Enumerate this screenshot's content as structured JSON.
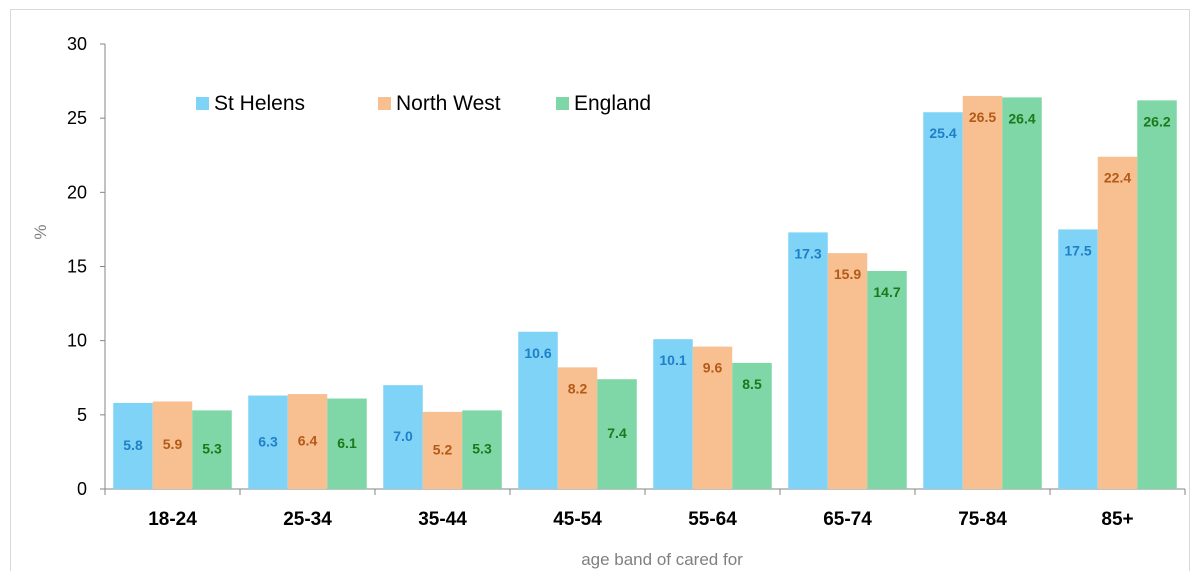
{
  "chart_data": {
    "type": "bar",
    "title": "",
    "xlabel": "age band of cared for",
    "ylabel": "%",
    "ylim": [
      0,
      30
    ],
    "yticks": [
      0,
      5,
      10,
      15,
      20,
      25,
      30
    ],
    "grid": false,
    "legend_position": "top-left",
    "categories": [
      "18-24",
      "25-34",
      "35-44",
      "45-54",
      "55-64",
      "65-74",
      "75-84",
      "85+"
    ],
    "series": [
      {
        "name": "St Helens",
        "color": "#7fd3f6",
        "label_color": "#1f7fc8",
        "values": [
          5.8,
          6.3,
          7.0,
          10.6,
          10.1,
          17.3,
          25.4,
          17.5
        ]
      },
      {
        "name": "North West",
        "color": "#f8bf91",
        "label_color": "#b35a17",
        "values": [
          5.9,
          6.4,
          5.2,
          8.2,
          9.6,
          15.9,
          26.5,
          22.4
        ]
      },
      {
        "name": "England",
        "color": "#7fd6a6",
        "label_color": "#1a7a1a",
        "values": [
          5.3,
          6.1,
          5.3,
          7.4,
          8.5,
          14.7,
          26.4,
          26.2
        ]
      }
    ]
  }
}
